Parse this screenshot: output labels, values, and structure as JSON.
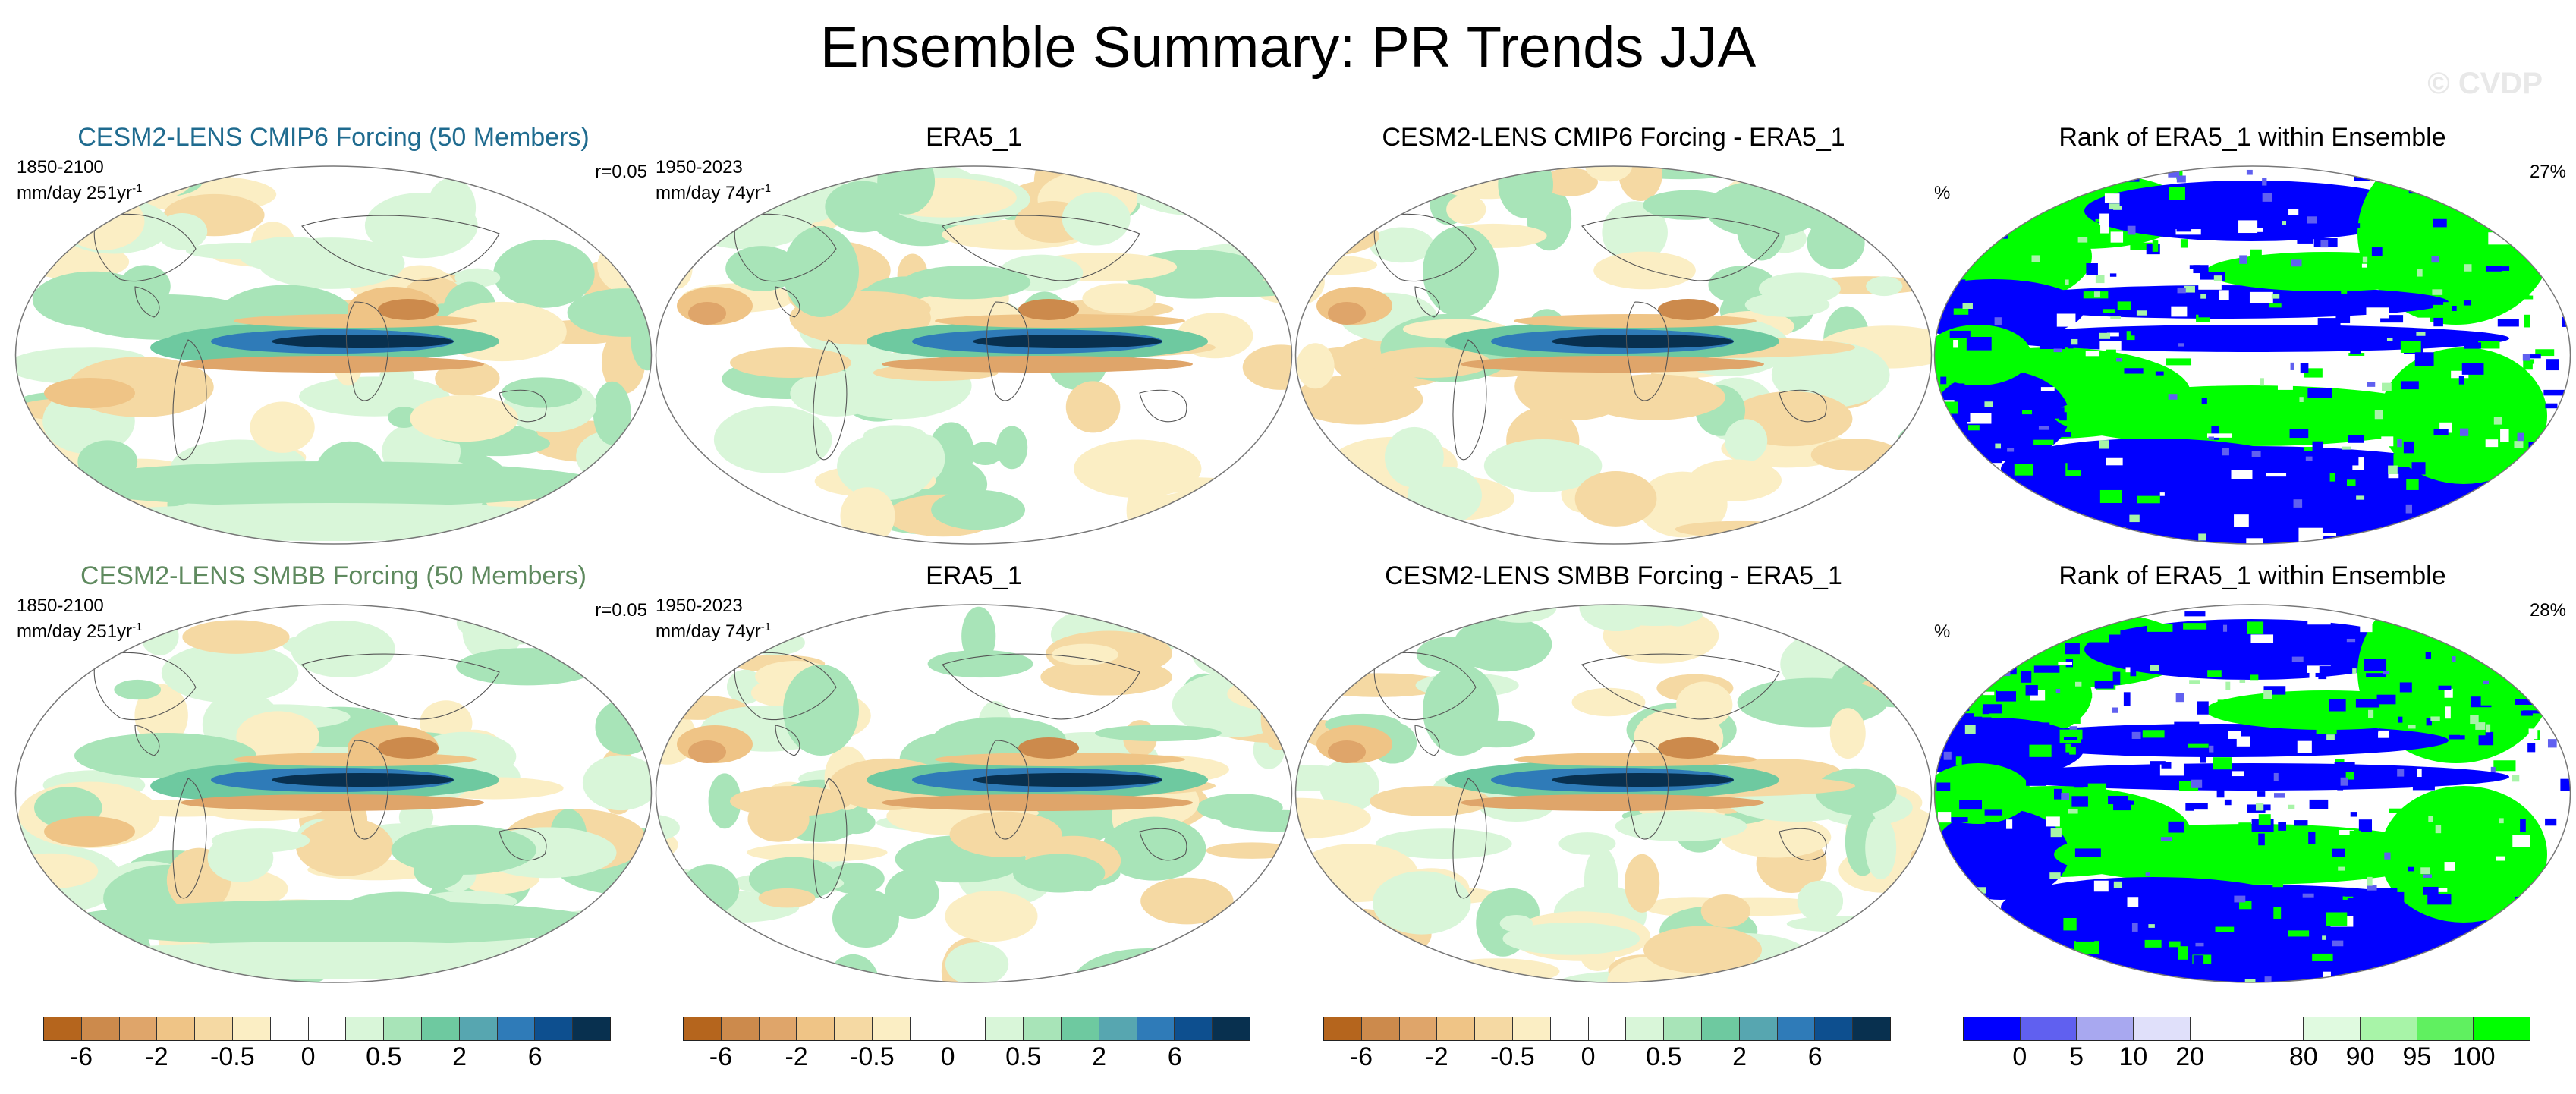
{
  "title": "Ensemble Summary: PR Trends JJA",
  "watermark": "© CVDP",
  "colors": {
    "model1_title": "#1f6b8f",
    "model2_title": "#5f8a5f",
    "trend_scale": [
      "#b5651d",
      "#cc8a4c",
      "#dfa56a",
      "#efc486",
      "#f5d9a3",
      "#fbeec4",
      "#ffffff",
      "#ffffff",
      "#d9f6d9",
      "#a8e4b8",
      "#6ec9a0",
      "#57a6b0",
      "#2f7bb8",
      "#0d4f8f",
      "#08304f"
    ],
    "rank_scale": [
      "#0000ff",
      "#6060f0",
      "#a8a8f0",
      "#e0e0fa",
      "#ffffff",
      "#ffffff",
      "#e0fae0",
      "#a8f4a8",
      "#60f060",
      "#00ff00"
    ]
  },
  "rows": [
    {
      "panels": [
        {
          "title": "CESM2-LENS CMIP6 Forcing (50 Members)",
          "period": "1850-2100",
          "units": "mm/day 251yr",
          "units_exp": "-1",
          "corr": "r=0.05"
        },
        {
          "title": "ERA5_1",
          "period": "1950-2023",
          "units": "mm/day 74yr",
          "units_exp": "-1"
        },
        {
          "title": "CESM2-LENS CMIP6 Forcing - ERA5_1"
        },
        {
          "title": "Rank of ERA5_1 within Ensemble",
          "pct_label": "%",
          "pct": "27%"
        }
      ]
    },
    {
      "panels": [
        {
          "title": "CESM2-LENS SMBB Forcing (50 Members)",
          "period": "1850-2100",
          "units": "mm/day 251yr",
          "units_exp": "-1",
          "corr": "r=0.05"
        },
        {
          "title": "ERA5_1",
          "period": "1950-2023",
          "units": "mm/day 74yr",
          "units_exp": "-1"
        },
        {
          "title": "CESM2-LENS SMBB Forcing - ERA5_1"
        },
        {
          "title": "Rank of ERA5_1 within Ensemble",
          "pct_label": "%",
          "pct": "28%"
        }
      ]
    }
  ],
  "colorbars": {
    "trend_ticks": [
      "-6",
      "-2",
      "-0.5",
      "0",
      "0.5",
      "2",
      "6"
    ],
    "rank_ticks": [
      "0",
      "5",
      "10",
      "20",
      "80",
      "90",
      "95",
      "100"
    ]
  }
}
